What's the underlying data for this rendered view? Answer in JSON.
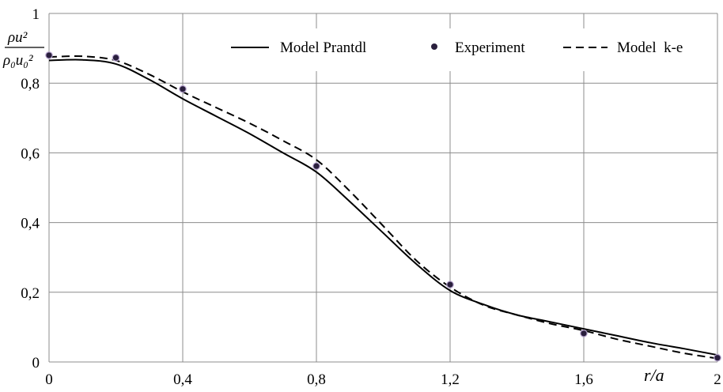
{
  "chart_data": {
    "type": "line",
    "ylabel": {
      "numerator": "ρu²",
      "denominator": "ρ₀u₀²"
    },
    "xlabel": "r/a",
    "xlim": [
      0,
      2
    ],
    "ylim": [
      0,
      1
    ],
    "x_ticks": [
      {
        "value": 0,
        "label": "0"
      },
      {
        "value": 0.4,
        "label": "0,4"
      },
      {
        "value": 0.8,
        "label": "0,8"
      },
      {
        "value": 1.2,
        "label": "1,2"
      },
      {
        "value": 1.6,
        "label": "1,6"
      },
      {
        "value": 2,
        "label": "2"
      }
    ],
    "y_ticks": [
      {
        "value": 0,
        "label": "0"
      },
      {
        "value": 0.2,
        "label": "0,2"
      },
      {
        "value": 0.4,
        "label": "0,4"
      },
      {
        "value": 0.6,
        "label": "0,6"
      },
      {
        "value": 0.8,
        "label": "0,8"
      },
      {
        "value": 1,
        "label": "1"
      }
    ],
    "grid": true,
    "legend_position": "top-right",
    "series": [
      {
        "name": "Model Prantdl",
        "style": "solid",
        "color": "#000000",
        "x": [
          0,
          0.1,
          0.2,
          0.3,
          0.4,
          0.5,
          0.6,
          0.7,
          0.8,
          0.9,
          1.0,
          1.1,
          1.2,
          1.3,
          1.4,
          1.5,
          1.6,
          1.7,
          1.8,
          1.9,
          2.0
        ],
        "y": [
          0.865,
          0.867,
          0.855,
          0.81,
          0.755,
          0.705,
          0.655,
          0.6,
          0.545,
          0.46,
          0.37,
          0.28,
          0.205,
          0.165,
          0.135,
          0.115,
          0.095,
          0.075,
          0.055,
          0.038,
          0.02
        ]
      },
      {
        "name": "Experiment",
        "style": "markers",
        "color": "#2a1f3d",
        "x": [
          0,
          0.2,
          0.4,
          0.8,
          1.2,
          1.6,
          2.0
        ],
        "y": [
          0.88,
          0.873,
          0.783,
          0.562,
          0.222,
          0.082,
          0.012
        ]
      },
      {
        "name": "Model  k-e",
        "style": "dashed",
        "color": "#000000",
        "x": [
          0,
          0.1,
          0.2,
          0.3,
          0.4,
          0.5,
          0.6,
          0.7,
          0.8,
          0.9,
          1.0,
          1.1,
          1.2,
          1.3,
          1.4,
          1.5,
          1.6,
          1.7,
          1.8,
          1.9,
          2.0
        ],
        "y": [
          0.875,
          0.877,
          0.865,
          0.825,
          0.775,
          0.73,
          0.685,
          0.635,
          0.58,
          0.49,
          0.39,
          0.29,
          0.215,
          0.163,
          0.135,
          0.11,
          0.09,
          0.065,
          0.045,
          0.025,
          0.01
        ]
      }
    ]
  }
}
